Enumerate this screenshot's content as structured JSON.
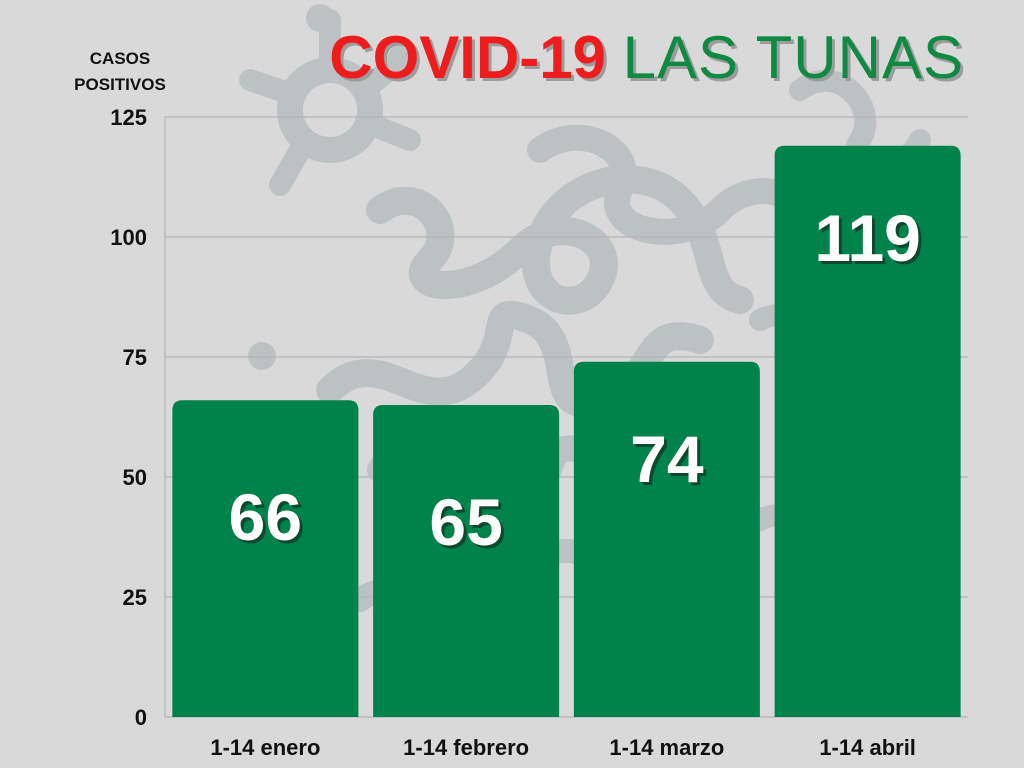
{
  "title": {
    "main": "COVID-19",
    "rest": "LAS TUNAS"
  },
  "colors": {
    "background": "#d9d9d9",
    "bar": "#00834a",
    "title_red": "#ee1c1c",
    "title_green": "#0e8a43",
    "decoration": "#b9c0c2",
    "value_label": "#ffffff",
    "axis_text": "#111111",
    "gridline": "#b5b5b5"
  },
  "decoration_icon": "virus-and-squiggles-watermark",
  "chart_data": {
    "type": "bar",
    "title": "COVID-19 LAS TUNAS",
    "ylabel_lines": [
      "CASOS",
      "POSITIVOS"
    ],
    "xlabel": "",
    "categories": [
      "1-14 enero",
      "1-14 febrero",
      "1-14 marzo",
      "1-14 abril"
    ],
    "values": [
      66,
      65,
      74,
      119
    ],
    "value_labels": [
      "66",
      "65",
      "74",
      "119"
    ],
    "ylim": [
      0,
      125
    ],
    "yticks": [
      0,
      25,
      50,
      75,
      100,
      125
    ],
    "ytick_labels": [
      "0",
      "25",
      "50",
      "75",
      "100",
      "125"
    ],
    "grid": true,
    "legend": "none"
  }
}
